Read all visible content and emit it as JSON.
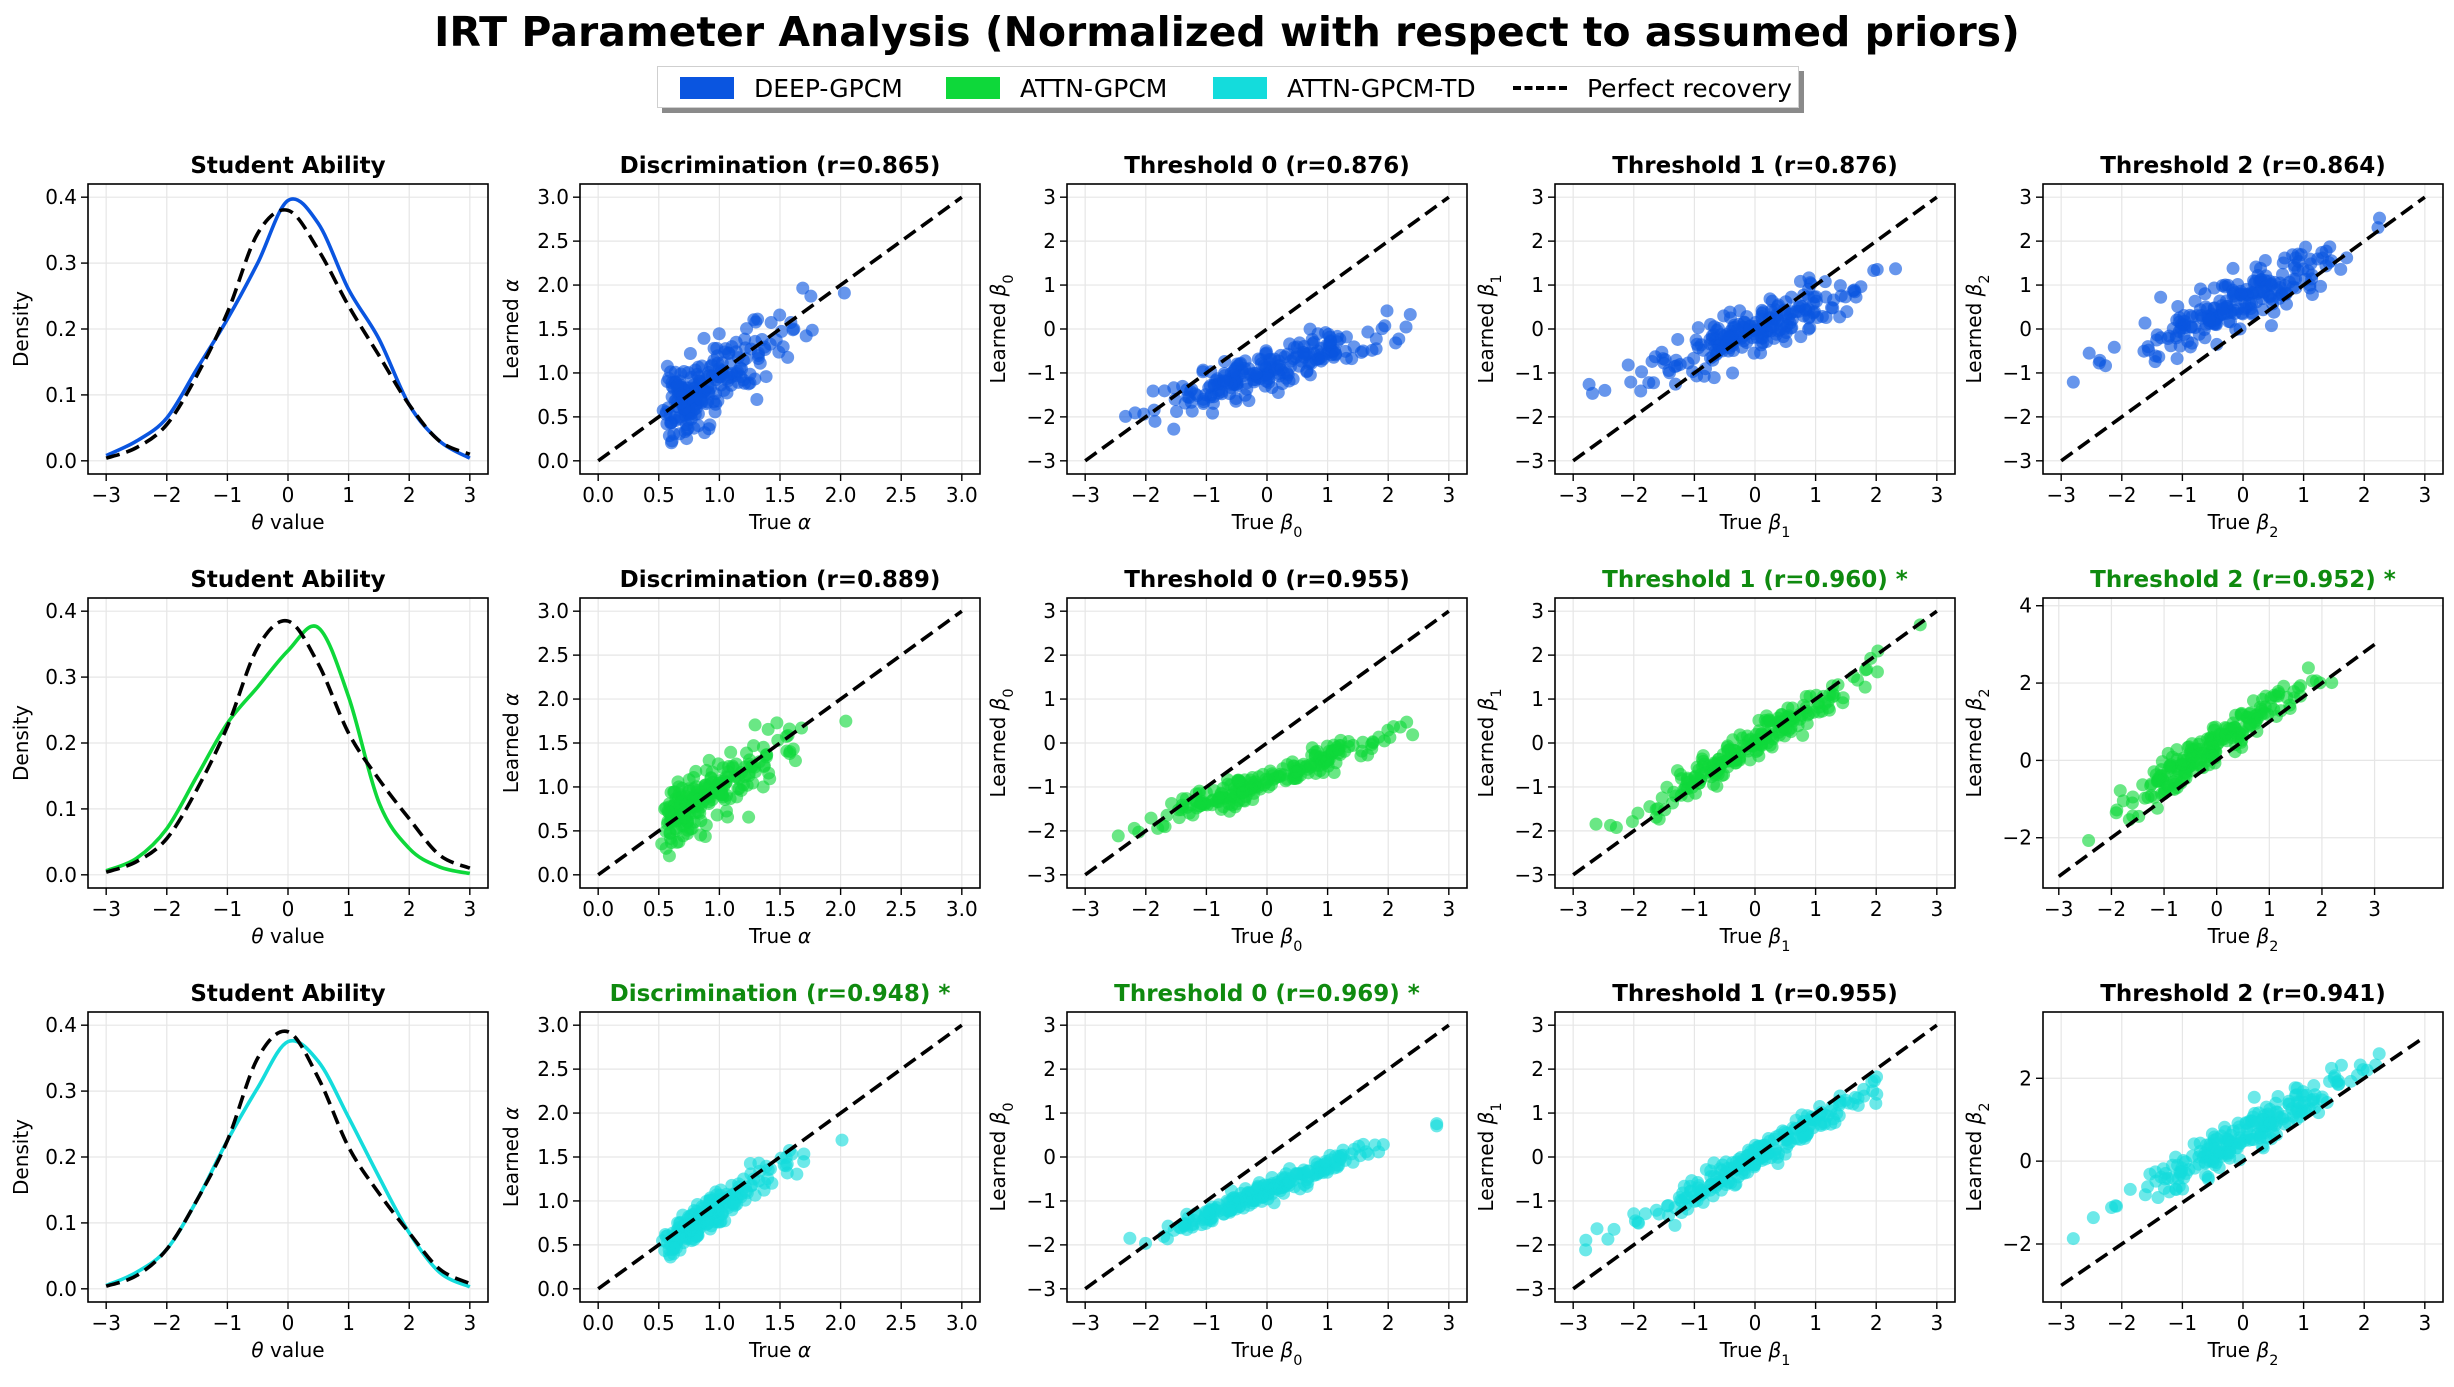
{
  "title": "IRT Parameter Analysis (Normalized with respect to assumed priors)",
  "legend": [
    {
      "label": "DEEP-GPCM",
      "color": "#0a55e0",
      "kind": "patch"
    },
    {
      "label": "ATTN-GPCM",
      "color": "#0ed83a",
      "kind": "patch"
    },
    {
      "label": "ATTN-GPCM-TD",
      "color": "#14dcdc",
      "kind": "patch"
    },
    {
      "label": "Perfect recovery",
      "color": "#000000",
      "kind": "dashed-line"
    }
  ],
  "model_colors": [
    "#0a55e0",
    "#0ed83a",
    "#14dcdc"
  ],
  "highlight_color": "#0f8a0f",
  "chart_data": [
    {
      "row": 0,
      "col": 0,
      "type": "line",
      "title": "Student Ability",
      "highlight": false,
      "xlabel": "θ value",
      "ylabel": "Density",
      "xlim": [
        -3.3,
        3.3
      ],
      "ylim": [
        -0.02,
        0.42
      ],
      "xticks": [
        -3,
        -2,
        -1,
        0,
        1,
        2,
        3
      ],
      "yticks": [
        0.0,
        0.1,
        0.2,
        0.3,
        0.4
      ],
      "ytick_labels": [
        "0.0",
        "0.1",
        "0.2",
        "0.3",
        "0.4"
      ],
      "grid": true,
      "series": [
        {
          "name": "learned",
          "style": "solid",
          "x": [
            -3.0,
            -2.5,
            -2.0,
            -1.5,
            -1.0,
            -0.5,
            0.0,
            0.5,
            1.0,
            1.5,
            2.0,
            2.5,
            3.0
          ],
          "y": [
            0.008,
            0.03,
            0.065,
            0.14,
            0.215,
            0.3,
            0.395,
            0.36,
            0.26,
            0.185,
            0.085,
            0.03,
            0.004
          ]
        },
        {
          "name": "prior",
          "style": "dashed",
          "x": [
            -3.0,
            -2.5,
            -2.0,
            -1.5,
            -1.0,
            -0.5,
            0.0,
            0.5,
            1.0,
            1.5,
            2.0,
            2.5,
            3.0
          ],
          "y": [
            0.004,
            0.02,
            0.055,
            0.13,
            0.225,
            0.345,
            0.38,
            0.32,
            0.235,
            0.16,
            0.085,
            0.03,
            0.01
          ]
        }
      ]
    },
    {
      "row": 0,
      "col": 1,
      "type": "scatter",
      "param": "alpha",
      "title": "Discrimination (r=0.865)",
      "highlight": false,
      "xlabel": "True α",
      "ylabel": "Learned α",
      "xlim": [
        -0.15,
        3.15
      ],
      "ylim": [
        -0.15,
        3.15
      ],
      "xticks": [
        0.0,
        0.5,
        1.0,
        1.5,
        2.0,
        2.5,
        3.0
      ],
      "yticks": [
        0.0,
        0.5,
        1.0,
        1.5,
        2.0,
        2.5,
        3.0
      ],
      "xtick_labels": [
        "0.0",
        "0.5",
        "1.0",
        "1.5",
        "2.0",
        "2.5",
        "3.0"
      ],
      "ytick_labels": [
        "0.0",
        "0.5",
        "1.0",
        "1.5",
        "2.0",
        "2.5",
        "3.0"
      ],
      "grid": true,
      "r": 0.865,
      "slope": 0.82,
      "intercept": 0.12,
      "noise": 0.19,
      "reference_line": [
        [
          0,
          0
        ],
        [
          3,
          3
        ]
      ]
    },
    {
      "row": 0,
      "col": 2,
      "type": "scatter",
      "param": "beta0",
      "title": "Threshold 0 (r=0.876)",
      "highlight": false,
      "xlabel": "True β0",
      "ylabel": "Learned β0",
      "xlim": [
        -3.3,
        3.3
      ],
      "ylim": [
        -3.3,
        3.3
      ],
      "xticks": [
        -3,
        -2,
        -1,
        0,
        1,
        2,
        3
      ],
      "yticks": [
        -3,
        -2,
        -1,
        0,
        1,
        2,
        3
      ],
      "grid": true,
      "r": 0.876,
      "slope": 0.45,
      "intercept": -0.95,
      "noise": 0.25,
      "reference_line": [
        [
          -3,
          -3
        ],
        [
          3,
          3
        ]
      ]
    },
    {
      "row": 0,
      "col": 3,
      "type": "scatter",
      "param": "beta1",
      "title": "Threshold 1 (r=0.876)",
      "highlight": false,
      "xlabel": "True β1",
      "ylabel": "Learned β1",
      "xlim": [
        -3.3,
        3.3
      ],
      "ylim": [
        -3.3,
        3.3
      ],
      "xticks": [
        -3,
        -2,
        -1,
        0,
        1,
        2,
        3
      ],
      "yticks": [
        -3,
        -2,
        -1,
        0,
        1,
        2,
        3
      ],
      "grid": true,
      "r": 0.876,
      "slope": 0.55,
      "intercept": 0.0,
      "noise": 0.28,
      "reference_line": [
        [
          -3,
          -3
        ],
        [
          3,
          3
        ]
      ]
    },
    {
      "row": 0,
      "col": 4,
      "type": "scatter",
      "param": "beta2",
      "title": "Threshold 2 (r=0.864)",
      "highlight": false,
      "xlabel": "True β2",
      "ylabel": "Learned β2",
      "xlim": [
        -3.3,
        3.3
      ],
      "ylim": [
        -3.3,
        3.3
      ],
      "xticks": [
        -3,
        -2,
        -1,
        0,
        1,
        2,
        3
      ],
      "yticks": [
        -3,
        -2,
        -1,
        0,
        1,
        2,
        3
      ],
      "grid": true,
      "r": 0.864,
      "slope": 0.62,
      "intercept": 0.65,
      "noise": 0.3,
      "reference_line": [
        [
          -3,
          -3
        ],
        [
          3,
          3
        ]
      ]
    },
    {
      "row": 1,
      "col": 0,
      "type": "line",
      "title": "Student Ability",
      "highlight": false,
      "xlabel": "θ value",
      "ylabel": "Density",
      "xlim": [
        -3.3,
        3.3
      ],
      "ylim": [
        -0.02,
        0.42
      ],
      "xticks": [
        -3,
        -2,
        -1,
        0,
        1,
        2,
        3
      ],
      "yticks": [
        0.0,
        0.1,
        0.2,
        0.3,
        0.4
      ],
      "ytick_labels": [
        "0.0",
        "0.1",
        "0.2",
        "0.3",
        "0.4"
      ],
      "grid": true,
      "series": [
        {
          "name": "learned",
          "style": "solid",
          "x": [
            -3.0,
            -2.5,
            -2.0,
            -1.5,
            -1.0,
            -0.5,
            0.0,
            0.5,
            1.0,
            1.5,
            2.0,
            2.5,
            3.0
          ],
          "y": [
            0.006,
            0.025,
            0.07,
            0.15,
            0.23,
            0.285,
            0.34,
            0.375,
            0.27,
            0.11,
            0.04,
            0.012,
            0.002
          ]
        },
        {
          "name": "prior",
          "style": "dashed",
          "x": [
            -3.0,
            -2.5,
            -2.0,
            -1.5,
            -1.0,
            -0.5,
            0.0,
            0.5,
            1.0,
            1.5,
            2.0,
            2.5,
            3.0
          ],
          "y": [
            0.004,
            0.02,
            0.055,
            0.13,
            0.225,
            0.345,
            0.385,
            0.32,
            0.215,
            0.145,
            0.085,
            0.03,
            0.01
          ]
        }
      ]
    },
    {
      "row": 1,
      "col": 1,
      "type": "scatter",
      "param": "alpha",
      "title": "Discrimination (r=0.889)",
      "highlight": false,
      "xlabel": "True α",
      "ylabel": "Learned α",
      "xlim": [
        -0.15,
        3.15
      ],
      "ylim": [
        -0.15,
        3.15
      ],
      "xticks": [
        0.0,
        0.5,
        1.0,
        1.5,
        2.0,
        2.5,
        3.0
      ],
      "yticks": [
        0.0,
        0.5,
        1.0,
        1.5,
        2.0,
        2.5,
        3.0
      ],
      "xtick_labels": [
        "0.0",
        "0.5",
        "1.0",
        "1.5",
        "2.0",
        "2.5",
        "3.0"
      ],
      "ytick_labels": [
        "0.0",
        "0.5",
        "1.0",
        "1.5",
        "2.0",
        "2.5",
        "3.0"
      ],
      "grid": true,
      "r": 0.889,
      "slope": 0.85,
      "intercept": 0.13,
      "noise": 0.17,
      "reference_line": [
        [
          0,
          0
        ],
        [
          3,
          3
        ]
      ]
    },
    {
      "row": 1,
      "col": 2,
      "type": "scatter",
      "param": "beta0",
      "title": "Threshold 0 (r=0.955)",
      "highlight": false,
      "xlabel": "True β0",
      "ylabel": "Learned β0",
      "xlim": [
        -3.3,
        3.3
      ],
      "ylim": [
        -3.3,
        3.3
      ],
      "xticks": [
        -3,
        -2,
        -1,
        0,
        1,
        2,
        3
      ],
      "yticks": [
        -3,
        -2,
        -1,
        0,
        1,
        2,
        3
      ],
      "grid": true,
      "r": 0.955,
      "slope": 0.5,
      "intercept": -0.85,
      "noise": 0.14,
      "reference_line": [
        [
          -3,
          -3
        ],
        [
          3,
          3
        ]
      ]
    },
    {
      "row": 1,
      "col": 3,
      "type": "scatter",
      "param": "beta1",
      "title": "Threshold 1 (r=0.960) *",
      "highlight": true,
      "xlabel": "True β1",
      "ylabel": "Learned β1",
      "xlim": [
        -3.3,
        3.3
      ],
      "ylim": [
        -3.3,
        3.3
      ],
      "xticks": [
        -3,
        -2,
        -1,
        0,
        1,
        2,
        3
      ],
      "yticks": [
        -3,
        -2,
        -1,
        0,
        1,
        2,
        3
      ],
      "grid": true,
      "r": 0.96,
      "slope": 0.85,
      "intercept": 0.0,
      "noise": 0.18,
      "reference_line": [
        [
          -3,
          -3
        ],
        [
          3,
          3
        ]
      ]
    },
    {
      "row": 1,
      "col": 4,
      "type": "scatter",
      "param": "beta2",
      "title": "Threshold 2 (r=0.952) *",
      "highlight": true,
      "xlabel": "True β2",
      "ylabel": "Learned β2",
      "xlim": [
        -3.3,
        4.3
      ],
      "ylim": [
        -3.3,
        4.2
      ],
      "xticks": [
        -3,
        -2,
        -1,
        0,
        1,
        2,
        3
      ],
      "yticks": [
        -2,
        0,
        2,
        4
      ],
      "grid": true,
      "r": 0.952,
      "slope": 0.95,
      "intercept": 0.45,
      "noise": 0.25,
      "reference_line": [
        [
          -3,
          -3
        ],
        [
          3,
          3
        ]
      ]
    },
    {
      "row": 2,
      "col": 0,
      "type": "line",
      "title": "Student Ability",
      "highlight": false,
      "xlabel": "θ value",
      "ylabel": "Density",
      "xlim": [
        -3.3,
        3.3
      ],
      "ylim": [
        -0.02,
        0.42
      ],
      "xticks": [
        -3,
        -2,
        -1,
        0,
        1,
        2,
        3
      ],
      "yticks": [
        0.0,
        0.1,
        0.2,
        0.3,
        0.4
      ],
      "ytick_labels": [
        "0.0",
        "0.1",
        "0.2",
        "0.3",
        "0.4"
      ],
      "grid": true,
      "series": [
        {
          "name": "learned",
          "style": "solid",
          "x": [
            -3.0,
            -2.5,
            -2.0,
            -1.5,
            -1.0,
            -0.5,
            0.0,
            0.5,
            1.0,
            1.5,
            2.0,
            2.5,
            3.0
          ],
          "y": [
            0.005,
            0.025,
            0.06,
            0.135,
            0.225,
            0.305,
            0.375,
            0.345,
            0.26,
            0.17,
            0.085,
            0.025,
            0.003
          ]
        },
        {
          "name": "prior",
          "style": "dashed",
          "x": [
            -3.0,
            -2.5,
            -2.0,
            -1.5,
            -1.0,
            -0.5,
            0.0,
            0.5,
            1.0,
            1.5,
            2.0,
            2.5,
            3.0
          ],
          "y": [
            0.004,
            0.02,
            0.06,
            0.135,
            0.225,
            0.35,
            0.39,
            0.32,
            0.215,
            0.145,
            0.085,
            0.03,
            0.008
          ]
        }
      ]
    },
    {
      "row": 2,
      "col": 1,
      "type": "scatter",
      "param": "alpha",
      "title": "Discrimination (r=0.948) *",
      "highlight": true,
      "xlabel": "True α",
      "ylabel": "Learned α",
      "xlim": [
        -0.15,
        3.15
      ],
      "ylim": [
        -0.15,
        3.15
      ],
      "xticks": [
        0.0,
        0.5,
        1.0,
        1.5,
        2.0,
        2.5,
        3.0
      ],
      "yticks": [
        0.0,
        0.5,
        1.0,
        1.5,
        2.0,
        2.5,
        3.0
      ],
      "xtick_labels": [
        "0.0",
        "0.5",
        "1.0",
        "1.5",
        "2.0",
        "2.5",
        "3.0"
      ],
      "ytick_labels": [
        "0.0",
        "0.5",
        "1.0",
        "1.5",
        "2.0",
        "2.5",
        "3.0"
      ],
      "grid": true,
      "r": 0.948,
      "slope": 0.92,
      "intercept": 0.0,
      "noise": 0.1,
      "reference_line": [
        [
          0,
          0
        ],
        [
          3,
          3
        ]
      ]
    },
    {
      "row": 2,
      "col": 2,
      "type": "scatter",
      "param": "beta0",
      "title": "Threshold 0 (r=0.969) *",
      "highlight": true,
      "xlabel": "True β0",
      "ylabel": "Learned β0",
      "xlim": [
        -3.3,
        3.3
      ],
      "ylim": [
        -3.3,
        3.3
      ],
      "xticks": [
        -3,
        -2,
        -1,
        0,
        1,
        2,
        3
      ],
      "yticks": [
        -3,
        -2,
        -1,
        0,
        1,
        2,
        3
      ],
      "grid": true,
      "r": 0.969,
      "slope": 0.55,
      "intercept": -0.75,
      "noise": 0.11,
      "reference_line": [
        [
          -3,
          -3
        ],
        [
          3,
          3
        ]
      ]
    },
    {
      "row": 2,
      "col": 3,
      "type": "scatter",
      "param": "beta1",
      "title": "Threshold 1 (r=0.955)",
      "highlight": false,
      "xlabel": "True β1",
      "ylabel": "Learned β1",
      "xlim": [
        -3.3,
        3.3
      ],
      "ylim": [
        -3.3,
        3.3
      ],
      "xticks": [
        -3,
        -2,
        -1,
        0,
        1,
        2,
        3
      ],
      "yticks": [
        -3,
        -2,
        -1,
        0,
        1,
        2,
        3
      ],
      "grid": true,
      "r": 0.955,
      "slope": 0.78,
      "intercept": 0.0,
      "noise": 0.18,
      "reference_line": [
        [
          -3,
          -3
        ],
        [
          3,
          3
        ]
      ]
    },
    {
      "row": 2,
      "col": 4,
      "type": "scatter",
      "param": "beta2",
      "title": "Threshold 2 (r=0.941)",
      "highlight": false,
      "xlabel": "True β2",
      "ylabel": "Learned β2",
      "xlim": [
        -3.3,
        3.3
      ],
      "ylim": [
        -3.4,
        3.6
      ],
      "xticks": [
        -3,
        -2,
        -1,
        0,
        1,
        2,
        3
      ],
      "yticks": [
        -2,
        0,
        2
      ],
      "grid": true,
      "r": 0.941,
      "slope": 0.8,
      "intercept": 0.6,
      "noise": 0.22,
      "reference_line": [
        [
          -3,
          -3
        ],
        [
          3,
          3
        ]
      ]
    }
  ]
}
